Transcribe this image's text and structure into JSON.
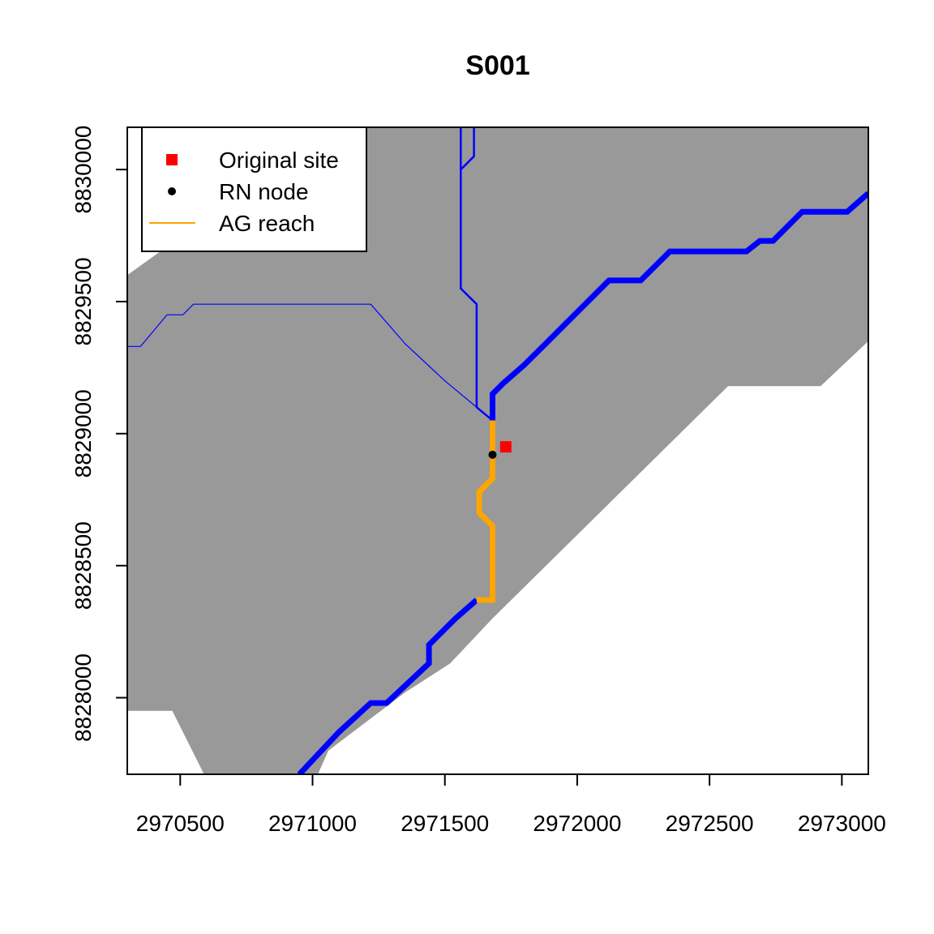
{
  "title": "S001",
  "xlim": [
    2970300,
    2973100
  ],
  "ylim": [
    8827710,
    8830160
  ],
  "x_ticks": [
    {
      "value": 2970500,
      "label": "2970500"
    },
    {
      "value": 2971000,
      "label": "2971000"
    },
    {
      "value": 2971500,
      "label": "2971500"
    },
    {
      "value": 2972000,
      "label": "2972000"
    },
    {
      "value": 2972500,
      "label": "2972500"
    },
    {
      "value": 2973000,
      "label": "2973000"
    }
  ],
  "y_ticks": [
    {
      "value": 8828000,
      "label": "8828000"
    },
    {
      "value": 8828500,
      "label": "8828500"
    },
    {
      "value": 8829000,
      "label": "8829000"
    },
    {
      "value": 8829500,
      "label": "8829500"
    },
    {
      "value": 8830000,
      "label": "8830000"
    }
  ],
  "legend": {
    "placement": "top-left",
    "items": [
      {
        "label": "Original site",
        "symbol": "square",
        "color": "#FF0000"
      },
      {
        "label": "RN node",
        "symbol": "dot",
        "color": "#000000"
      },
      {
        "label": "AG reach",
        "symbol": "line",
        "color": "#FFA500"
      }
    ]
  },
  "colors": {
    "catchment": "#999999",
    "river": "#0000FF",
    "ag_reach": "#FFA500",
    "site": "#FF0000",
    "node": "#000000"
  },
  "catchment_polygon": [
    [
      2970300,
      8829600
    ],
    [
      2970550,
      8829780
    ],
    [
      2970550,
      8830160
    ],
    [
      2973100,
      8830160
    ],
    [
      2973100,
      8829350
    ],
    [
      2972920,
      8829180
    ],
    [
      2972570,
      8829180
    ],
    [
      2971680,
      8828300
    ],
    [
      2971520,
      8828130
    ],
    [
      2971350,
      8828020
    ],
    [
      2971060,
      8827800
    ],
    [
      2971020,
      8827710
    ],
    [
      2970590,
      8827710
    ],
    [
      2970470,
      8827950
    ],
    [
      2970300,
      8827950
    ]
  ],
  "rivers": [
    {
      "width": "thick",
      "points": [
        [
          2970950,
          8827710
        ],
        [
          2971100,
          8827870
        ],
        [
          2971220,
          8827980
        ],
        [
          2971280,
          8827980
        ],
        [
          2971440,
          8828130
        ],
        [
          2971440,
          8828200
        ],
        [
          2971540,
          8828300
        ],
        [
          2971620,
          8828370
        ]
      ]
    },
    {
      "width": "thick",
      "points": [
        [
          2971680,
          8829050
        ],
        [
          2971680,
          8829150
        ],
        [
          2971720,
          8829190
        ],
        [
          2971800,
          8829260
        ],
        [
          2971880,
          8829340
        ],
        [
          2971960,
          8829420
        ],
        [
          2972060,
          8829520
        ],
        [
          2972120,
          8829580
        ],
        [
          2972240,
          8829580
        ],
        [
          2972350,
          8829690
        ],
        [
          2972640,
          8829690
        ],
        [
          2972690,
          8829730
        ],
        [
          2972740,
          8829730
        ],
        [
          2972850,
          8829840
        ],
        [
          2973020,
          8829840
        ],
        [
          2973100,
          8829910
        ]
      ]
    },
    {
      "width": "medium",
      "points": [
        [
          2971680,
          8829050
        ],
        [
          2971620,
          8829100
        ],
        [
          2971620,
          8829490
        ],
        [
          2971560,
          8829550
        ],
        [
          2971560,
          8830000
        ],
        [
          2971610,
          8830050
        ],
        [
          2971610,
          8830160
        ]
      ]
    },
    {
      "width": "medium",
      "points": [
        [
          2971560,
          8830000
        ],
        [
          2971560,
          8830160
        ]
      ]
    },
    {
      "width": "thin",
      "points": [
        [
          2971680,
          8829050
        ],
        [
          2971500,
          8829200
        ],
        [
          2971350,
          8829340
        ],
        [
          2971220,
          8829490
        ],
        [
          2970550,
          8829490
        ],
        [
          2970510,
          8829450
        ],
        [
          2970450,
          8829450
        ],
        [
          2970350,
          8829330
        ],
        [
          2970300,
          8829330
        ]
      ]
    }
  ],
  "ag_reach": [
    [
      2971620,
      8828370
    ],
    [
      2971680,
      8828370
    ],
    [
      2971680,
      8828650
    ],
    [
      2971630,
      8828700
    ],
    [
      2971630,
      8828780
    ],
    [
      2971680,
      8828830
    ],
    [
      2971680,
      8829050
    ]
  ],
  "original_site": [
    2971730,
    8828950
  ],
  "rn_node": [
    2971680,
    8828920
  ]
}
